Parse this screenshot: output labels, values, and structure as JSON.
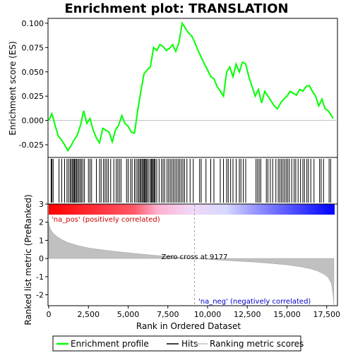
{
  "title": "Enrichment plot: TRANSLATION",
  "chart_data": {
    "type": "line",
    "title": "Enrichment plot: TRANSLATION",
    "xlabel": "Rank in Ordered Dataset",
    "es_ylabel": "Enrichment score (ES)",
    "metric_ylabel": "Ranked list metric (PreRanked)",
    "x_ticks": [
      0,
      2500,
      5000,
      7500,
      10000,
      12500,
      15000,
      17500
    ],
    "x_tick_labels": [
      "0",
      "2,500",
      "5,000",
      "7,500",
      "10,000",
      "12,500",
      "15,000",
      "17,500"
    ],
    "xlim": [
      0,
      18000
    ],
    "es_ylim": [
      -0.038,
      0.105
    ],
    "es_ticks": [
      -0.025,
      0.0,
      0.025,
      0.05,
      0.075,
      0.1
    ],
    "es_tick_labels": [
      "-0.025",
      "0.000",
      "0.025",
      "0.050",
      "0.075",
      "0.100"
    ],
    "metric_ylim": [
      -2.6,
      3.0
    ],
    "metric_ticks": [
      -2,
      -1,
      0,
      1,
      2,
      3
    ],
    "metric_tick_labels": [
      "-2",
      "-1",
      "0",
      "1",
      "2",
      "3"
    ],
    "enrichment_profile": {
      "x": [
        0,
        200,
        400,
        600,
        800,
        1000,
        1200,
        1400,
        1600,
        1800,
        2000,
        2200,
        2400,
        2600,
        2800,
        3000,
        3200,
        3400,
        3600,
        3800,
        4000,
        4200,
        4400,
        4600,
        4800,
        5000,
        5200,
        5400,
        5600,
        5800,
        6000,
        6200,
        6400,
        6600,
        6800,
        7000,
        7200,
        7400,
        7600,
        7800,
        8000,
        8200,
        8400,
        8600,
        8800,
        9000,
        9200,
        9400,
        9600,
        9800,
        10000,
        10200,
        10400,
        10600,
        10800,
        11000,
        11200,
        11400,
        11600,
        11800,
        12000,
        12200,
        12400,
        12600,
        12800,
        13000,
        13200,
        13400,
        13600,
        13800,
        14000,
        14200,
        14400,
        14600,
        14800,
        15000,
        15200,
        15400,
        15600,
        15800,
        16000,
        16200,
        16400,
        16600,
        16800,
        17000,
        17200,
        17400,
        17600,
        17800,
        17900
      ],
      "y": [
        0.0,
        0.007,
        -0.005,
        -0.016,
        -0.02,
        -0.025,
        -0.031,
        -0.026,
        -0.02,
        -0.015,
        -0.005,
        0.01,
        -0.003,
        0.002,
        -0.01,
        -0.018,
        -0.023,
        -0.008,
        -0.01,
        -0.012,
        -0.022,
        -0.01,
        -0.005,
        0.005,
        -0.003,
        -0.006,
        -0.012,
        -0.013,
        0.01,
        0.03,
        0.048,
        0.052,
        0.055,
        0.075,
        0.072,
        0.078,
        0.076,
        0.072,
        0.074,
        0.078,
        0.071,
        0.08,
        0.1,
        0.095,
        0.09,
        0.087,
        0.08,
        0.072,
        0.065,
        0.058,
        0.052,
        0.045,
        0.043,
        0.035,
        0.03,
        0.025,
        0.05,
        0.055,
        0.045,
        0.058,
        0.05,
        0.06,
        0.058,
        0.045,
        0.035,
        0.025,
        0.032,
        0.018,
        0.03,
        0.025,
        0.02,
        0.015,
        0.012,
        0.018,
        0.022,
        0.025,
        0.03,
        0.028,
        0.026,
        0.032,
        0.03,
        0.035,
        0.036,
        0.03,
        0.025,
        0.015,
        0.022,
        0.012,
        0.01,
        0.005,
        0.002
      ]
    },
    "hit_ranks": [
      150,
      200,
      280,
      650,
      820,
      1000,
      1150,
      1250,
      1350,
      1420,
      1500,
      1560,
      1620,
      1680,
      1750,
      1820,
      1900,
      1980,
      2060,
      2150,
      2250,
      2500,
      2600,
      2700,
      3000,
      3200,
      3300,
      3450,
      3550,
      3650,
      3750,
      3900,
      4100,
      4250,
      4350,
      4450,
      4550,
      4900,
      5000,
      5150,
      5250,
      5400,
      5500,
      5600,
      5680,
      5760,
      5820,
      5900,
      5960,
      6020,
      6080,
      6140,
      6200,
      6300,
      6400,
      6460,
      6520,
      6580,
      6640,
      6700,
      6800,
      6950,
      7100,
      7200,
      7300,
      7450,
      7550,
      7650,
      7750,
      7850,
      7950,
      8050,
      8150,
      8250,
      8350,
      8450,
      8550,
      8700,
      8900,
      9100,
      9500,
      9600,
      9900,
      10200,
      10400,
      10800,
      11000,
      11200,
      11300,
      11450,
      11600,
      11800,
      12000,
      12100,
      12250,
      12400,
      13050,
      13150,
      13250,
      13350,
      13700,
      13800,
      13950,
      14100,
      14300,
      14450,
      14550,
      14650,
      14750,
      14850,
      14950,
      15050,
      15150,
      15300,
      15450,
      15550,
      15700,
      15850,
      16000,
      16100,
      16250,
      16350,
      16500,
      16700,
      17050,
      17150,
      17300,
      17650,
      17750
    ],
    "metric_curve": {
      "x": [
        0,
        50,
        150,
        300,
        500,
        800,
        1200,
        1800,
        2500,
        3500,
        4500,
        5500,
        6500,
        7500,
        8500,
        9177,
        10000,
        11000,
        12000,
        13000,
        14000,
        15000,
        15800,
        16400,
        16900,
        17300,
        17600,
        17800,
        17900,
        17950
      ],
      "y": [
        2.0,
        1.75,
        1.55,
        1.38,
        1.22,
        1.05,
        0.88,
        0.72,
        0.58,
        0.46,
        0.36,
        0.27,
        0.19,
        0.12,
        0.05,
        0.0,
        -0.05,
        -0.1,
        -0.15,
        -0.2,
        -0.27,
        -0.35,
        -0.45,
        -0.55,
        -0.68,
        -0.85,
        -1.05,
        -1.4,
        -2.0,
        -2.55
      ]
    },
    "zero_cross_rank": 9177,
    "annotations": {
      "zero_cross": "Zero cross at 9177",
      "pos_label": "'na_pos' (positively correlated)",
      "neg_label": "'na_neg' (negatively correlated)"
    },
    "legend": {
      "items": [
        "Enrichment profile",
        "Hits",
        "Ranking metric scores"
      ],
      "placement": "bottom"
    },
    "colors": {
      "profile": "#00ff00",
      "hits": "#000000",
      "metric_fill": "#c0c0c0",
      "pos_text": "#cc0000",
      "neg_text": "#0000cc",
      "bar_red": "#ff0000",
      "bar_blue": "#0000ff"
    }
  }
}
